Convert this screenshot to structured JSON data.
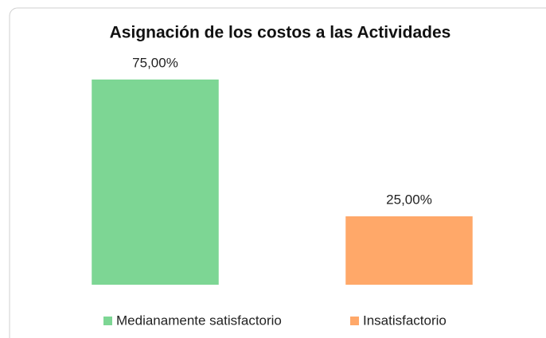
{
  "chart_data": {
    "type": "bar",
    "title": "Asignación de los costos a las Actividades",
    "categories": [
      "Medianamente satisfactorio",
      "Insatisfactorio"
    ],
    "values": [
      75,
      25
    ],
    "value_labels": [
      "75,00%",
      "25,00%"
    ],
    "colors": [
      "#7dd694",
      "#ffa869"
    ],
    "legend": "bottom"
  }
}
